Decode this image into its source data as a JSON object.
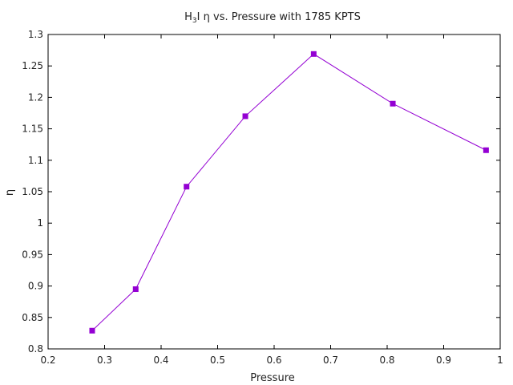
{
  "chart_data": {
    "type": "line",
    "title_main": "H",
    "title_sub": "3",
    "title_rest": "I η vs. Pressure with 1785 KPTS",
    "xlabel": "Pressure",
    "ylabel": "η",
    "xlim": [
      0.2,
      1.0
    ],
    "ylim": [
      0.8,
      1.3
    ],
    "xticks": [
      "0.2",
      "0.3",
      "0.4",
      "0.5",
      "0.6",
      "0.7",
      "0.8",
      "0.9",
      "1"
    ],
    "yticks": [
      "0.8",
      "0.85",
      "0.9",
      "0.95",
      "1",
      "1.05",
      "1.1",
      "1.15",
      "1.2",
      "1.25",
      "1.3"
    ],
    "grid": false,
    "legend": "none",
    "series": [
      {
        "color": "#9400D3",
        "marker": "square",
        "x": [
          0.278,
          0.355,
          0.445,
          0.549,
          0.67,
          0.81,
          0.975
        ],
        "y": [
          0.829,
          0.895,
          1.058,
          1.17,
          1.269,
          1.19,
          1.116
        ]
      }
    ]
  }
}
